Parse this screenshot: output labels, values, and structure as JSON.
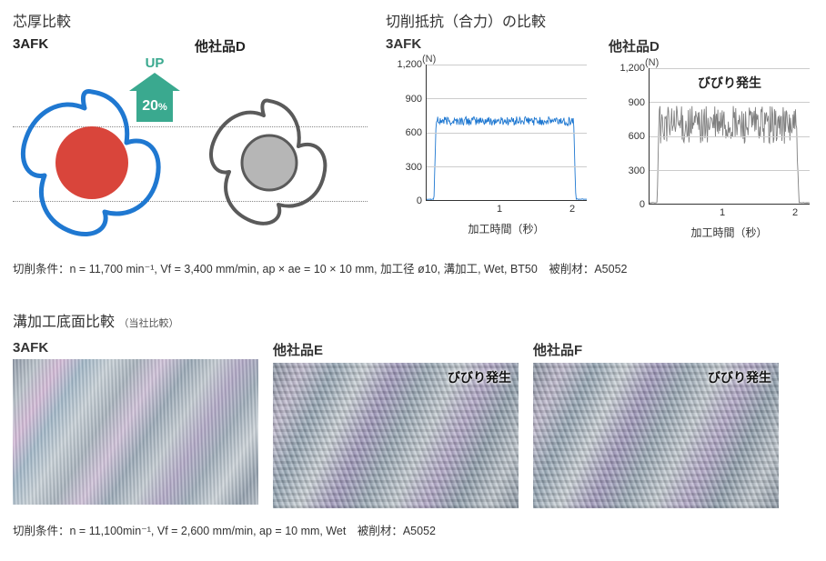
{
  "colors": {
    "blue": "#1f78d1",
    "gray": "#808080",
    "red_fill": "#d9453b",
    "green": "#3aa98f",
    "gray_fill": "#b6b6b6",
    "line_dark": "#5a5a5a"
  },
  "thickness": {
    "title": "芯厚比較",
    "label_3afk": "3AFK",
    "label_other": "他社品D",
    "up_text": "UP",
    "up_percent": "20",
    "up_percent_unit": "%"
  },
  "cutting": {
    "title": "切削抵抗（合力）の比較",
    "unit": "(N)",
    "y_ticks": [
      0,
      300,
      600,
      900,
      1200
    ],
    "ylim": [
      0,
      1200
    ],
    "x_ticks": [
      1,
      2
    ],
    "x_label": "加工時間（秒）",
    "chart_a": {
      "title": "3AFK",
      "color": "#1f78d1",
      "mean": 700,
      "noise": 40,
      "t_start": 0.1,
      "t_end": 2.05
    },
    "chart_b": {
      "title": "他社品D",
      "color": "#808080",
      "mean": 700,
      "noise": 170,
      "t_start": 0.1,
      "t_end": 2.05,
      "annotation": "びびり発生"
    }
  },
  "conditions1_html": "切削条件：n = 11,700 min⁻¹,  Vf = 3,400 mm/min,  ap × ae = 10 × 10 mm,  加工径 ø10,  溝加工,  Wet,  BT50　被削材：A5052",
  "bottom": {
    "title": "溝加工底面比較",
    "subtitle": "（当社比較）",
    "items": [
      {
        "label": "3AFK",
        "chatter": false
      },
      {
        "label": "他社品E",
        "chatter": true,
        "tag": "びびり発生"
      },
      {
        "label": "他社品F",
        "chatter": true,
        "tag": "びびり発生"
      }
    ]
  },
  "conditions2_html": "切削条件：n = 11,100min⁻¹, Vf = 2,600 mm/min, ap = 10 mm,  Wet　被削材：A5052"
}
